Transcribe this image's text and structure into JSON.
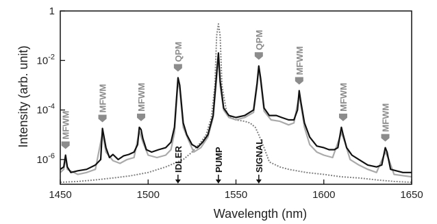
{
  "chart_data": {
    "type": "line",
    "title": "",
    "xlabel": "Wavelength (nm)",
    "ylabel": "Intensity (arb. unit)",
    "xlim": [
      1450,
      1650
    ],
    "ylim": [
      1e-07,
      1
    ],
    "y_scale": "log",
    "x_ticks": [
      "1450",
      "1500",
      "1550",
      "1600",
      "1650"
    ],
    "y_ticks": [
      {
        "base": "",
        "exp": "",
        "text": "1",
        "value": 1
      },
      {
        "base": "10",
        "exp": "-2",
        "text": "",
        "value": 0.01
      },
      {
        "base": "10",
        "exp": "-4",
        "text": "",
        "value": 0.0001
      },
      {
        "base": "10",
        "exp": "-6",
        "text": "",
        "value": 1e-06
      }
    ],
    "grid": false,
    "series": [
      {
        "color": "#111111",
        "style": "solid",
        "points": [
          [
            1450,
            4e-07
          ],
          [
            1452,
            5e-07
          ],
          [
            1453,
            1.5e-06
          ],
          [
            1454,
            5e-07
          ],
          [
            1456,
            3e-07
          ],
          [
            1460,
            3.5e-07
          ],
          [
            1465,
            4e-07
          ],
          [
            1470,
            6e-07
          ],
          [
            1473,
            1e-06
          ],
          [
            1474,
            1.8e-05
          ],
          [
            1476,
            3e-06
          ],
          [
            1478,
            1.2e-06
          ],
          [
            1480,
            1.6e-06
          ],
          [
            1483,
            1e-06
          ],
          [
            1486,
            1.4e-06
          ],
          [
            1489,
            1.6e-06
          ],
          [
            1492,
            2e-06
          ],
          [
            1494,
            4e-06
          ],
          [
            1495,
            2e-05
          ],
          [
            1496,
            1.6e-05
          ],
          [
            1497,
            7e-06
          ],
          [
            1499,
            2.5e-06
          ],
          [
            1502,
            2e-06
          ],
          [
            1506,
            2.5e-06
          ],
          [
            1510,
            3e-06
          ],
          [
            1513,
            5e-06
          ],
          [
            1515,
            2e-05
          ],
          [
            1517,
            0.002
          ],
          [
            1518,
            0.001
          ],
          [
            1520,
            3e-05
          ],
          [
            1522,
            1e-05
          ],
          [
            1525,
            4e-06
          ],
          [
            1528,
            3e-06
          ],
          [
            1531,
            5e-06
          ],
          [
            1534,
            1e-05
          ],
          [
            1537,
            6e-05
          ],
          [
            1539,
            0.003
          ],
          [
            1540,
            0.02
          ],
          [
            1541,
            0.0015
          ],
          [
            1543,
            0.00012
          ],
          [
            1546,
            6e-05
          ],
          [
            1550,
            5e-05
          ],
          [
            1555,
            6e-05
          ],
          [
            1560,
            0.0001
          ],
          [
            1562,
            0.0012
          ],
          [
            1563,
            0.006
          ],
          [
            1564,
            0.002
          ],
          [
            1566,
            0.00012
          ],
          [
            1569,
            6e-05
          ],
          [
            1573,
            6e-05
          ],
          [
            1576,
            5e-05
          ],
          [
            1580,
            4e-05
          ],
          [
            1583,
            4e-05
          ],
          [
            1585,
            0.0001
          ],
          [
            1586,
            0.0006
          ],
          [
            1587,
            0.0002
          ],
          [
            1589,
            3e-05
          ],
          [
            1592,
            8e-06
          ],
          [
            1596,
            3.5e-06
          ],
          [
            1600,
            3e-06
          ],
          [
            1603,
            2.5e-06
          ],
          [
            1606,
            2.5e-06
          ],
          [
            1608,
            3e-06
          ],
          [
            1610,
            2e-05
          ],
          [
            1611,
            1e-05
          ],
          [
            1613,
            3e-06
          ],
          [
            1616,
            1.5e-06
          ],
          [
            1620,
            1e-06
          ],
          [
            1625,
            6e-07
          ],
          [
            1630,
            5e-07
          ],
          [
            1633,
            6e-07
          ],
          [
            1635,
            3e-06
          ],
          [
            1636,
            2e-06
          ],
          [
            1638,
            4e-07
          ],
          [
            1645,
            3e-07
          ],
          [
            1650,
            3e-07
          ]
        ]
      },
      {
        "color": "#aaaaaa",
        "style": "solid",
        "points": [
          [
            1450,
            3e-07
          ],
          [
            1452,
            4e-07
          ],
          [
            1453,
            1.2e-06
          ],
          [
            1454,
            4e-07
          ],
          [
            1460,
            2.5e-07
          ],
          [
            1465,
            3e-07
          ],
          [
            1470,
            4e-07
          ],
          [
            1474,
            1.2e-05
          ],
          [
            1476,
            2e-06
          ],
          [
            1480,
            9e-07
          ],
          [
            1484,
            7e-07
          ],
          [
            1488,
            1e-06
          ],
          [
            1492,
            1.2e-06
          ],
          [
            1495,
            1.4e-05
          ],
          [
            1497,
            5e-06
          ],
          [
            1500,
            1.5e-06
          ],
          [
            1505,
            1.2e-06
          ],
          [
            1510,
            1.5e-06
          ],
          [
            1513,
            2.5e-06
          ],
          [
            1515,
            1.2e-05
          ],
          [
            1517,
            0.0015
          ],
          [
            1518,
            0.0007
          ],
          [
            1520,
            2e-05
          ],
          [
            1523,
            6e-06
          ],
          [
            1526,
            2e-06
          ],
          [
            1530,
            3e-06
          ],
          [
            1534,
            8e-06
          ],
          [
            1537,
            5e-05
          ],
          [
            1539,
            0.002
          ],
          [
            1540,
            0.015
          ],
          [
            1541,
            0.001
          ],
          [
            1543,
            0.0001
          ],
          [
            1546,
            5e-05
          ],
          [
            1550,
            4e-05
          ],
          [
            1555,
            5e-05
          ],
          [
            1560,
            8e-05
          ],
          [
            1562,
            0.0009
          ],
          [
            1563,
            0.005
          ],
          [
            1564,
            0.0015
          ],
          [
            1566,
            9e-05
          ],
          [
            1570,
            4e-05
          ],
          [
            1575,
            3.5e-05
          ],
          [
            1580,
            2.5e-05
          ],
          [
            1583,
            3e-05
          ],
          [
            1586,
            0.0004
          ],
          [
            1587,
            0.00015
          ],
          [
            1589,
            2e-05
          ],
          [
            1592,
            4e-06
          ],
          [
            1596,
            2e-06
          ],
          [
            1600,
            1.5e-06
          ],
          [
            1605,
            1.2e-06
          ],
          [
            1610,
            1.2e-05
          ],
          [
            1612,
            5e-06
          ],
          [
            1615,
            1e-06
          ],
          [
            1620,
            6e-07
          ],
          [
            1625,
            4e-07
          ],
          [
            1630,
            3e-07
          ],
          [
            1635,
            2e-06
          ],
          [
            1637,
            1e-06
          ],
          [
            1640,
            2.5e-07
          ],
          [
            1650,
            2e-07
          ]
        ]
      },
      {
        "color": "#808080",
        "style": "dotted",
        "points": [
          [
            1450,
            1.2e-07
          ],
          [
            1460,
            1.3e-07
          ],
          [
            1470,
            1.5e-07
          ],
          [
            1480,
            1.8e-07
          ],
          [
            1490,
            2.2e-07
          ],
          [
            1500,
            3e-07
          ],
          [
            1510,
            5e-07
          ],
          [
            1520,
            1e-06
          ],
          [
            1525,
            2e-06
          ],
          [
            1530,
            5e-06
          ],
          [
            1533,
            1e-05
          ],
          [
            1536,
            5e-05
          ],
          [
            1538,
            0.001
          ],
          [
            1539,
            0.1
          ],
          [
            1540,
            0.3
          ],
          [
            1541,
            0.1
          ],
          [
            1542,
            0.001
          ],
          [
            1545,
            6e-05
          ],
          [
            1550,
            4e-05
          ],
          [
            1555,
            3.5e-05
          ],
          [
            1558,
            3e-05
          ],
          [
            1561,
            2e-05
          ],
          [
            1563,
            1e-05
          ],
          [
            1566,
            3e-06
          ],
          [
            1569,
            8e-07
          ],
          [
            1575,
            5e-07
          ],
          [
            1580,
            4e-07
          ],
          [
            1590,
            3e-07
          ],
          [
            1600,
            2.5e-07
          ],
          [
            1610,
            2e-07
          ],
          [
            1620,
            1.8e-07
          ],
          [
            1630,
            1.5e-07
          ],
          [
            1640,
            1.3e-07
          ],
          [
            1650,
            1.2e-07
          ]
        ]
      }
    ],
    "annotations_top": [
      {
        "text": "MFWM",
        "x": 1453,
        "y": 1.5e-06
      },
      {
        "text": "MFWM",
        "x": 1474,
        "y": 1.8e-05
      },
      {
        "text": "MFWM",
        "x": 1496,
        "y": 2e-05
      },
      {
        "text": "QPM",
        "x": 1517,
        "y": 0.002
      },
      {
        "text": "QPM",
        "x": 1563,
        "y": 0.006
      },
      {
        "text": "MFWM",
        "x": 1586,
        "y": 0.0006
      },
      {
        "text": "MFWM",
        "x": 1611,
        "y": 2e-05
      },
      {
        "text": "MFWM",
        "x": 1635,
        "y": 3e-06
      }
    ],
    "annotations_bottom": [
      {
        "text": "IDLER",
        "x": 1517
      },
      {
        "text": "PUMP",
        "x": 1540
      },
      {
        "text": "SIGNAL",
        "x": 1563
      }
    ]
  }
}
